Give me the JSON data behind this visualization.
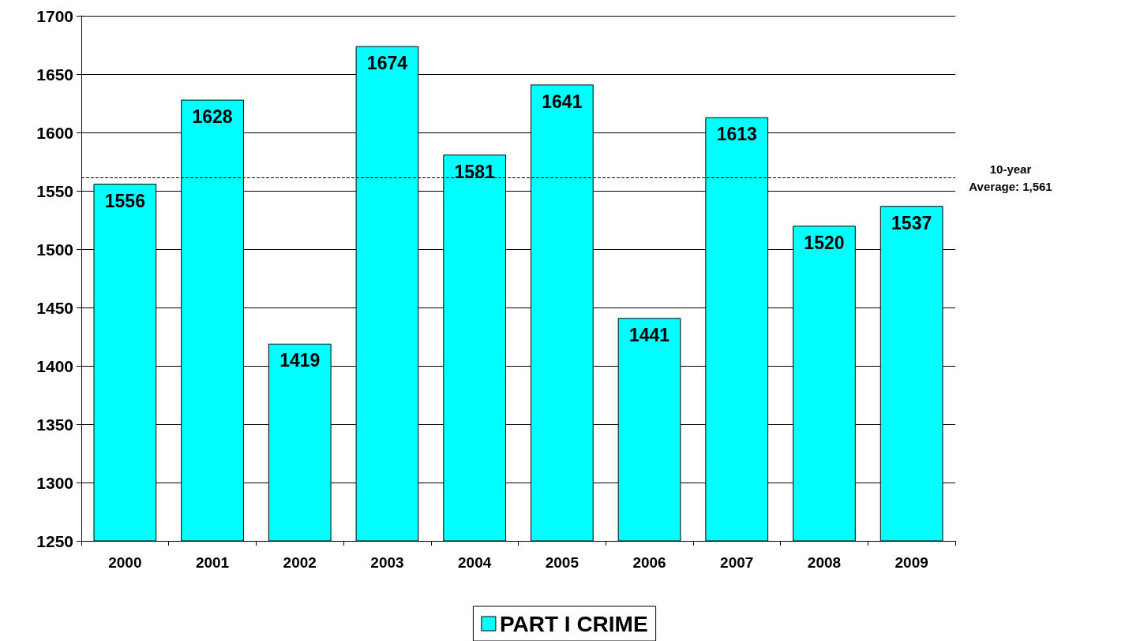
{
  "chart_data": {
    "type": "bar",
    "categories": [
      "2000",
      "2001",
      "2002",
      "2003",
      "2004",
      "2005",
      "2006",
      "2007",
      "2008",
      "2009"
    ],
    "series": [
      {
        "name": "PART I CRIME",
        "color": "#00ffff",
        "values": [
          1556,
          1628,
          1419,
          1674,
          1581,
          1641,
          1441,
          1613,
          1520,
          1537
        ]
      }
    ],
    "ylim": [
      1250,
      1700
    ],
    "yticks": [
      1250,
      1300,
      1350,
      1400,
      1450,
      1500,
      1550,
      1600,
      1650,
      1700
    ],
    "grid": "y",
    "legend": "bottom",
    "data_labels": true,
    "ref_lines": [
      {
        "axis": "y",
        "value": 1561,
        "label": "10-year\nAverage: 1,561",
        "line_style": "dashed"
      }
    ]
  }
}
